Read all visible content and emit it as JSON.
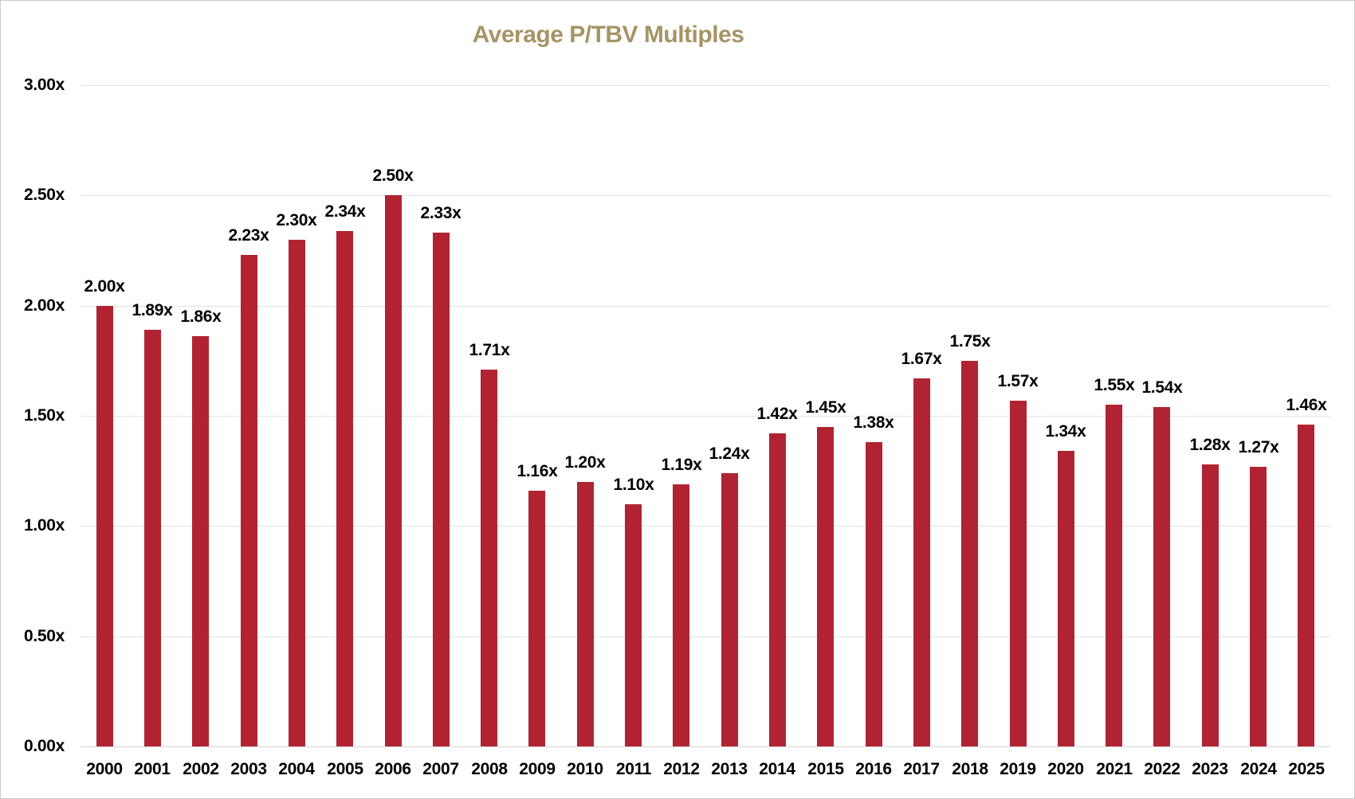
{
  "title": "Average P/TBV Multiples",
  "colors": {
    "bar": "#b12331",
    "title": "#a69465",
    "gridline": "#e2e2e2",
    "baseline": "#d6d6d6",
    "label": "#000000",
    "background": "#ffffff",
    "border": "#c9c9c9"
  },
  "chart_data": {
    "type": "bar",
    "title": "Average P/TBV Multiples",
    "categories": [
      "2000",
      "2001",
      "2002",
      "2003",
      "2004",
      "2005",
      "2006",
      "2007",
      "2008",
      "2009",
      "2010",
      "2011",
      "2012",
      "2013",
      "2014",
      "2015",
      "2016",
      "2017",
      "2018",
      "2019",
      "2020",
      "2021",
      "2022",
      "2023",
      "2024",
      "2025"
    ],
    "values": [
      2.0,
      1.89,
      1.86,
      2.23,
      2.3,
      2.34,
      2.5,
      2.33,
      1.71,
      1.16,
      1.2,
      1.1,
      1.19,
      1.24,
      1.42,
      1.45,
      1.38,
      1.67,
      1.75,
      1.57,
      1.34,
      1.55,
      1.54,
      1.28,
      1.27,
      1.46
    ],
    "value_labels": [
      "2.00x",
      "1.89x",
      "1.86x",
      "2.23x",
      "2.30x",
      "2.34x",
      "2.50x",
      "2.33x",
      "1.71x",
      "1.16x",
      "1.20x",
      "1.10x",
      "1.19x",
      "1.24x",
      "1.42x",
      "1.45x",
      "1.38x",
      "1.67x",
      "1.75x",
      "1.57x",
      "1.34x",
      "1.55x",
      "1.54x",
      "1.28x",
      "1.27x",
      "1.46x"
    ],
    "y_ticks": [
      {
        "value": 0.0,
        "label": "0.00x"
      },
      {
        "value": 0.5,
        "label": "0.50x"
      },
      {
        "value": 1.0,
        "label": "1.00x"
      },
      {
        "value": 1.5,
        "label": "1.50x"
      },
      {
        "value": 2.0,
        "label": "2.00x"
      },
      {
        "value": 2.5,
        "label": "2.50x"
      },
      {
        "value": 3.0,
        "label": "3.00x"
      }
    ],
    "ylim": [
      0,
      3
    ],
    "xlabel": "",
    "ylabel": "",
    "grid": true,
    "legend": "none"
  }
}
